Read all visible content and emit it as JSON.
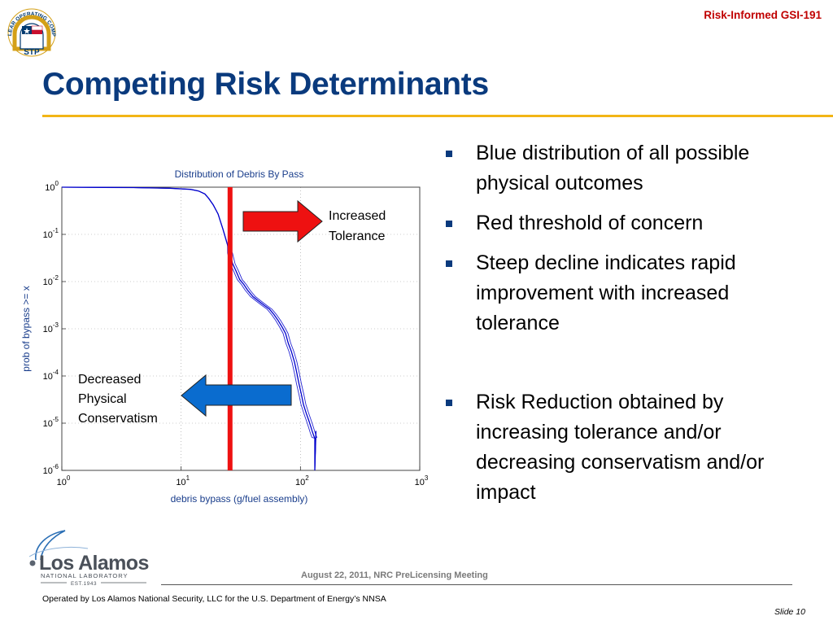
{
  "header": {
    "tag": "Risk-Informed GSI-191"
  },
  "logo": {
    "ring_text": "NUCLEAR OPERATING COMPANY",
    "abbr": "STP",
    "colors": {
      "ring": "#d4a017",
      "red": "#c8102e",
      "blue": "#003a70"
    }
  },
  "title": "Competing Risk Determinants",
  "bullets": [
    "Blue distribution of all possible physical outcomes",
    "Red threshold of concern",
    "Steep decline indicates rapid improvement with increased tolerance",
    "Risk Reduction obtained by increasing tolerance and/or decreasing conservatism and/or impact"
  ],
  "annotations": {
    "increased": [
      "Increased",
      "Tolerance"
    ],
    "decreased": [
      "Decreased",
      "Physical",
      "Conservatism"
    ]
  },
  "colors": {
    "title": "#0a3a7d",
    "rule": "#f2b516",
    "header_tag": "#c00000",
    "curve": "#0000cc",
    "threshold": "#ee1111",
    "arrow_right_fill": "#ee1111",
    "arrow_left_fill": "#0a6ccf",
    "axis_text": "#1a3e8c"
  },
  "chart_data": {
    "type": "line",
    "title": "Distribution of Debris By Pass",
    "xlabel": "debris bypass (g/fuel assembly)",
    "ylabel": "prob of bypass >= x",
    "xscale": "log",
    "yscale": "log",
    "xlim": [
      1,
      1000
    ],
    "ylim": [
      1e-06,
      1
    ],
    "x_ticks": [
      {
        "base": "10",
        "exp": "0"
      },
      {
        "base": "10",
        "exp": "1"
      },
      {
        "base": "10",
        "exp": "2"
      },
      {
        "base": "10",
        "exp": "3"
      }
    ],
    "y_ticks": [
      {
        "base": "10",
        "exp": "0"
      },
      {
        "base": "10",
        "exp": "-1"
      },
      {
        "base": "10",
        "exp": "-2"
      },
      {
        "base": "10",
        "exp": "-3"
      },
      {
        "base": "10",
        "exp": "-4"
      },
      {
        "base": "10",
        "exp": "-5"
      },
      {
        "base": "10",
        "exp": "-6"
      }
    ],
    "threshold_x": 25.7,
    "series": [
      {
        "x": [
          1,
          4,
          8,
          12,
          14,
          15.8,
          17,
          18.6,
          20.4,
          22.4,
          24.5,
          25.7,
          27,
          28.8,
          31,
          33.5,
          36,
          40,
          45,
          50,
          55,
          60,
          65,
          70,
          75,
          79,
          84,
          89,
          93,
          97,
          102,
          106,
          112,
          118,
          123,
          126,
          129,
          131,
          132,
          132,
          132,
          135
        ],
        "y": [
          1,
          0.98,
          0.95,
          0.9,
          0.83,
          0.72,
          0.58,
          0.42,
          0.27,
          0.13,
          0.06,
          0.04,
          0.024,
          0.017,
          0.011,
          0.0087,
          0.0066,
          0.0048,
          0.0038,
          0.0031,
          0.0026,
          0.002,
          0.0015,
          0.0011,
          0.0008,
          0.0005,
          0.00033,
          0.0002,
          0.00012,
          7e-05,
          4e-05,
          2.5e-05,
          1.6e-05,
          1.1e-05,
          8e-06,
          6.5e-06,
          5.5e-06,
          5e-06,
          4.8e-06,
          3e-06,
          1e-06,
          6.8e-06
        ]
      }
    ]
  },
  "footer": {
    "date": "August 22, 2011, NRC PreLicensing Meeting",
    "operated": "Operated by Los Alamos National Security, LLC for the U.S. Department of Energy’s NNSA",
    "slide": "Slide 10"
  },
  "lanl": {
    "name": "Los Alamos",
    "sub": "NATIONAL LABORATORY",
    "est": "EST.1943",
    "colors": {
      "text": "#4a5059",
      "orbit": "#2b6fb5"
    }
  }
}
